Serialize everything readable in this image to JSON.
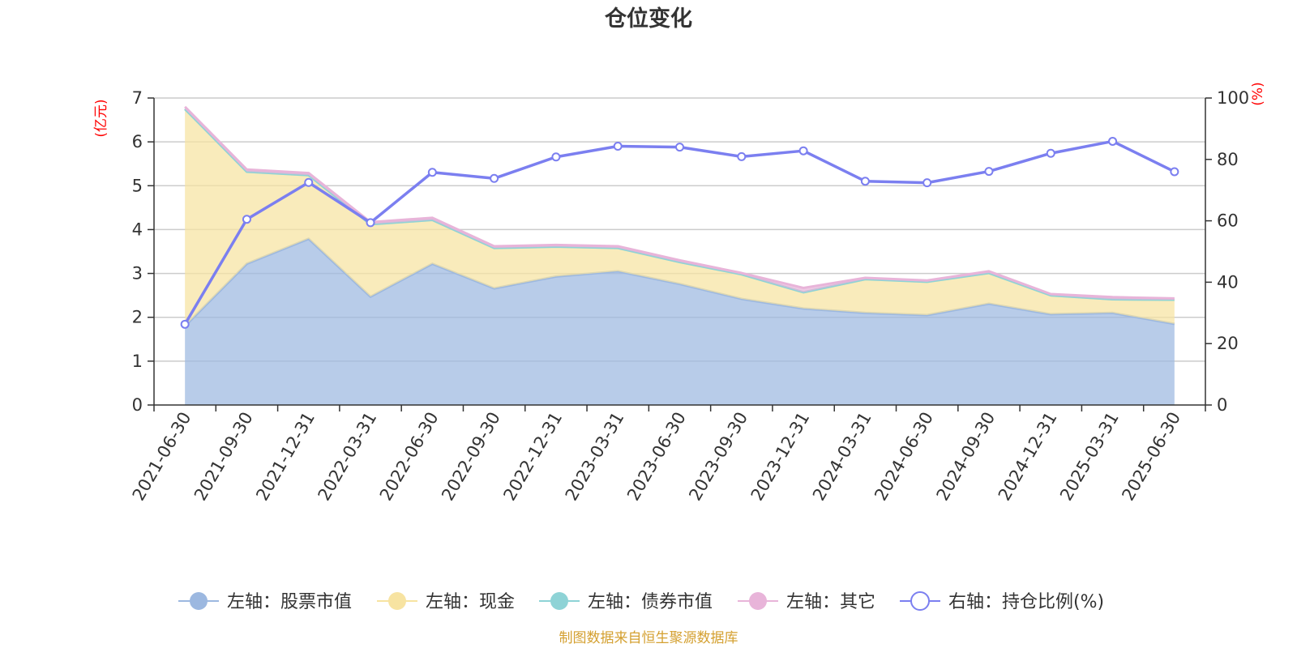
{
  "chart_data": {
    "type": "area",
    "title": "仓位变化",
    "y_left_unit": "(亿元)",
    "y_right_unit": "(%)",
    "ylim_left": [
      0,
      7
    ],
    "ylim_right": [
      0,
      100
    ],
    "y_left_ticks": [
      0,
      1,
      2,
      3,
      4,
      5,
      6,
      7
    ],
    "y_right_ticks": [
      0,
      20,
      40,
      60,
      80,
      100
    ],
    "grid": true,
    "legend_position": "bottom",
    "categories": [
      "2021-06-30",
      "2021-09-30",
      "2021-12-31",
      "2022-03-31",
      "2022-06-30",
      "2022-09-30",
      "2022-12-31",
      "2023-03-31",
      "2023-06-30",
      "2023-09-30",
      "2023-12-31",
      "2024-03-31",
      "2024-06-30",
      "2024-09-30",
      "2024-12-31",
      "2025-03-31",
      "2025-06-30"
    ],
    "series": [
      {
        "name": "左轴：股票市值",
        "axis": "left",
        "type": "area",
        "color": "#9cb8e0",
        "values": [
          1.8,
          3.22,
          3.79,
          2.47,
          3.22,
          2.66,
          2.93,
          3.05,
          2.76,
          2.42,
          2.2,
          2.1,
          2.05,
          2.31,
          2.07,
          2.1,
          1.85
        ]
      },
      {
        "name": "左轴：现金",
        "axis": "left",
        "type": "area",
        "color": "#f7e3a1",
        "values": [
          4.95,
          2.1,
          1.45,
          1.65,
          1.0,
          0.92,
          0.68,
          0.53,
          0.5,
          0.56,
          0.37,
          0.77,
          0.76,
          0.7,
          0.43,
          0.31,
          0.55
        ]
      },
      {
        "name": "左轴：债券市值",
        "axis": "left",
        "type": "area",
        "color": "#8ed3d6",
        "values": [
          0,
          0,
          0,
          0,
          0,
          0,
          0,
          0,
          0,
          0,
          0,
          0,
          0,
          0,
          0,
          0,
          0
        ]
      },
      {
        "name": "左轴：其它",
        "axis": "left",
        "type": "area",
        "color": "#e8b4d9",
        "values": [
          0.05,
          0.05,
          0.05,
          0.05,
          0.05,
          0.04,
          0.04,
          0.04,
          0.04,
          0.03,
          0.1,
          0.03,
          0.03,
          0.04,
          0.03,
          0.05,
          0.03
        ]
      },
      {
        "name": "右轴：持仓比例(%)",
        "axis": "right",
        "type": "line",
        "color": "#7b7ff0",
        "values": [
          26.3,
          60.5,
          72.5,
          59.4,
          75.8,
          73.8,
          80.8,
          84.3,
          84.0,
          80.9,
          82.8,
          72.9,
          72.4,
          76.1,
          82.0,
          85.9,
          76.0
        ]
      }
    ]
  },
  "source_text": "制图数据来自恒生聚源数据库",
  "colors": {
    "title": "#333333",
    "axis_unit": "#ff0000",
    "source": "#d4a030",
    "grid": "#cccccc",
    "axis": "#333333"
  }
}
